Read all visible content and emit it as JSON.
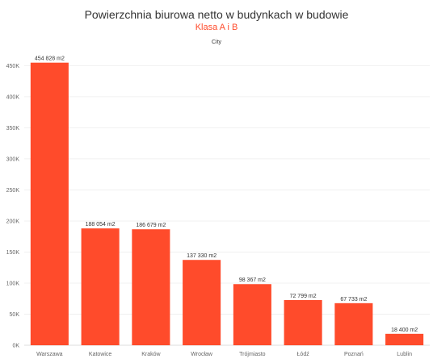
{
  "chart_data": {
    "type": "bar",
    "title": "Powierzchnia biurowa netto w budynkach w budowie",
    "subtitle": "Klasa A i B",
    "xlabel": "City",
    "ylabel": "",
    "categories": [
      "Warszawa",
      "Katowice",
      "Kraków",
      "Wrocław",
      "Trójmiasto",
      "Łódź",
      "Poznań",
      "Lublin"
    ],
    "values": [
      454828,
      188054,
      186679,
      137330,
      98367,
      72799,
      67733,
      18400
    ],
    "data_labels": [
      "454 828 m2",
      "188 054 m2",
      "186 679 m2",
      "137 330 m2",
      "98 367 m2",
      "72 799 m2",
      "67 733 m2",
      "18 400 m2"
    ],
    "yticks": [
      0,
      50000,
      100000,
      150000,
      200000,
      250000,
      300000,
      350000,
      400000,
      450000
    ],
    "ytick_labels": [
      "0K",
      "50K",
      "100K",
      "150K",
      "200K",
      "250K",
      "300K",
      "350K",
      "400K",
      "450K"
    ],
    "ylim": [
      0,
      470000
    ],
    "grid": true,
    "bar_color": "#ff4b2b"
  }
}
